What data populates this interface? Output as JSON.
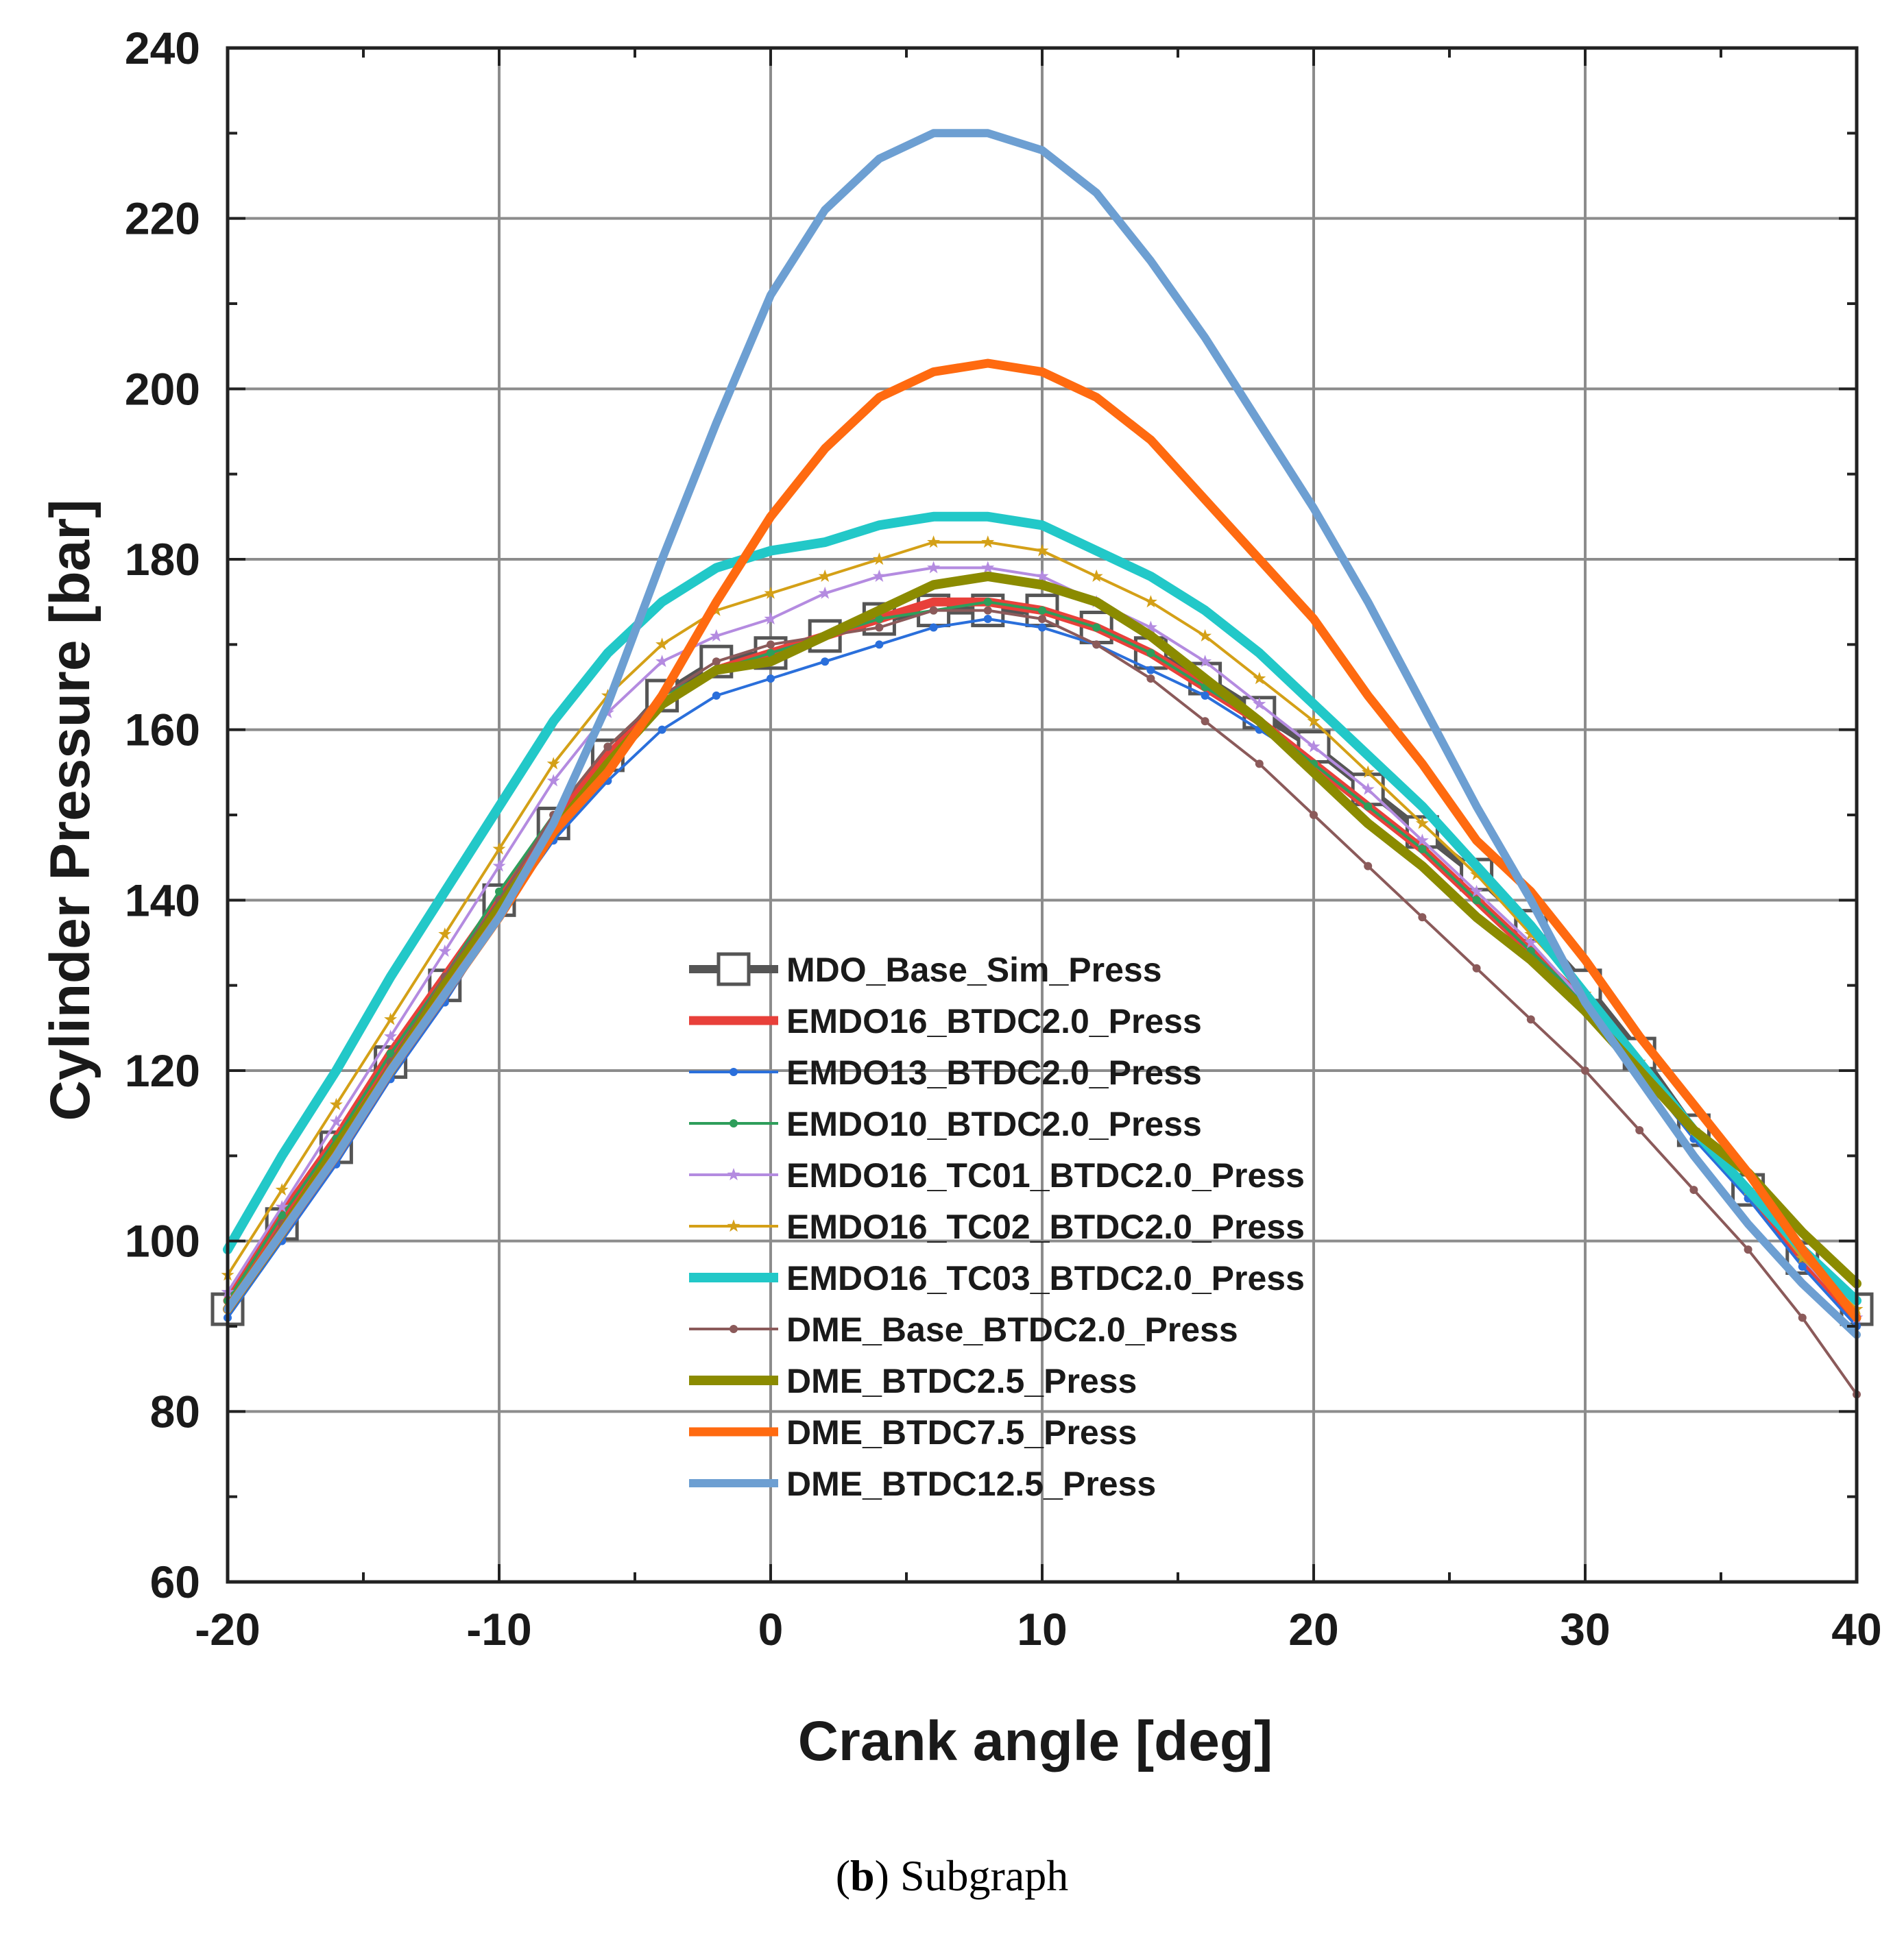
{
  "caption": {
    "letter": "b",
    "text": " Subgraph"
  },
  "chart_data": {
    "type": "line",
    "xlabel": "Crank angle [deg]",
    "ylabel": "Cylinder Pressure [bar]",
    "xlim": [
      -20,
      40
    ],
    "ylim": [
      60,
      240
    ],
    "xticks": [
      -20,
      -10,
      0,
      10,
      20,
      30,
      40
    ],
    "yticks": [
      60,
      80,
      100,
      120,
      140,
      160,
      180,
      200,
      220,
      240
    ],
    "grid": true,
    "legend_position": "center-bottom",
    "series": [
      {
        "name": "MDO_Base_Sim_Press",
        "color": "#555555",
        "marker": "square-open",
        "x": [
          -20,
          -18,
          -16,
          -14,
          -12,
          -10,
          -8,
          -6,
          -4,
          -2,
          0,
          2,
          4,
          6,
          8,
          10,
          12,
          14,
          16,
          18,
          20,
          22,
          24,
          26,
          28,
          30,
          32,
          34,
          36,
          38,
          40
        ],
        "y": [
          92,
          102,
          111,
          121,
          130,
          140,
          149,
          157,
          164,
          168,
          169,
          171,
          173,
          174,
          174,
          174,
          172,
          169,
          166,
          162,
          158,
          153,
          148,
          143,
          137,
          130,
          122,
          113,
          106,
          98,
          92
        ]
      },
      {
        "name": "EMDO16_BTDC2.0_Press",
        "color": "#e8403a",
        "marker": "none",
        "x": [
          -20,
          -18,
          -16,
          -14,
          -12,
          -10,
          -8,
          -6,
          -4,
          -2,
          0,
          2,
          4,
          6,
          8,
          10,
          12,
          14,
          16,
          18,
          20,
          22,
          24,
          26,
          28,
          30,
          32,
          34,
          36,
          38,
          40
        ],
        "y": [
          93,
          103,
          112,
          122,
          131,
          140,
          149,
          157,
          163,
          167,
          169,
          171,
          173,
          175,
          175,
          174,
          172,
          169,
          165,
          161,
          156,
          151,
          146,
          140,
          134,
          128,
          121,
          113,
          106,
          98,
          91
        ]
      },
      {
        "name": "EMDO13_BTDC2.0_Press",
        "color": "#2a6fdb",
        "marker": "dot",
        "x": [
          -20,
          -18,
          -16,
          -14,
          -12,
          -10,
          -8,
          -6,
          -4,
          -2,
          0,
          2,
          4,
          6,
          8,
          10,
          12,
          14,
          16,
          18,
          20,
          22,
          24,
          26,
          28,
          30,
          32,
          34,
          36,
          38,
          40
        ],
        "y": [
          91,
          100,
          109,
          119,
          128,
          138,
          147,
          154,
          160,
          164,
          166,
          168,
          170,
          172,
          173,
          172,
          170,
          167,
          164,
          160,
          156,
          151,
          146,
          140,
          134,
          127,
          120,
          112,
          105,
          97,
          90
        ]
      },
      {
        "name": "EMDO10_BTDC2.0_Press",
        "color": "#2e9e5b",
        "marker": "dot",
        "x": [
          -20,
          -18,
          -16,
          -14,
          -12,
          -10,
          -8,
          -6,
          -4,
          -2,
          0,
          2,
          4,
          6,
          8,
          10,
          12,
          14,
          16,
          18,
          20,
          22,
          24,
          26,
          28,
          30,
          32,
          34,
          36,
          38,
          40
        ],
        "y": [
          93,
          103,
          112,
          122,
          131,
          141,
          150,
          158,
          164,
          167,
          169,
          171,
          173,
          174,
          175,
          174,
          172,
          169,
          165,
          161,
          156,
          151,
          146,
          140,
          134,
          128,
          121,
          113,
          106,
          98,
          91
        ]
      },
      {
        "name": "EMDO16_TC01_BTDC2.0_Press",
        "color": "#b48be0",
        "marker": "star",
        "x": [
          -20,
          -18,
          -16,
          -14,
          -12,
          -10,
          -8,
          -6,
          -4,
          -2,
          0,
          2,
          4,
          6,
          8,
          10,
          12,
          14,
          16,
          18,
          20,
          22,
          24,
          26,
          28,
          30,
          32,
          34,
          36,
          38,
          40
        ],
        "y": [
          94,
          104,
          114,
          124,
          134,
          144,
          154,
          162,
          168,
          171,
          173,
          176,
          178,
          179,
          179,
          178,
          175,
          172,
          168,
          163,
          158,
          153,
          147,
          141,
          135,
          128,
          121,
          113,
          106,
          98,
          91
        ]
      },
      {
        "name": "EMDO16_TC02_BTDC2.0_Press",
        "color": "#d4a017",
        "marker": "star",
        "x": [
          -20,
          -18,
          -16,
          -14,
          -12,
          -10,
          -8,
          -6,
          -4,
          -2,
          0,
          2,
          4,
          6,
          8,
          10,
          12,
          14,
          16,
          18,
          20,
          22,
          24,
          26,
          28,
          30,
          32,
          34,
          36,
          38,
          40
        ],
        "y": [
          96,
          106,
          116,
          126,
          136,
          146,
          156,
          164,
          170,
          174,
          176,
          178,
          180,
          182,
          182,
          181,
          178,
          175,
          171,
          166,
          161,
          155,
          149,
          143,
          136,
          129,
          121,
          113,
          106,
          98,
          92
        ]
      },
      {
        "name": "EMDO16_TC03_BTDC2.0_Press",
        "color": "#22c8c8",
        "marker": "none",
        "x": [
          -20,
          -18,
          -16,
          -14,
          -12,
          -10,
          -8,
          -6,
          -4,
          -2,
          0,
          2,
          4,
          6,
          8,
          10,
          12,
          14,
          16,
          18,
          20,
          22,
          24,
          26,
          28,
          30,
          32,
          34,
          36,
          38,
          40
        ],
        "y": [
          99,
          110,
          120,
          131,
          141,
          151,
          161,
          169,
          175,
          179,
          181,
          182,
          184,
          185,
          185,
          184,
          181,
          178,
          174,
          169,
          163,
          157,
          151,
          144,
          137,
          129,
          121,
          113,
          106,
          99,
          93
        ]
      },
      {
        "name": "DME_Base_BTDC2.0_Press",
        "color": "#8b5a5a",
        "marker": "dot",
        "x": [
          -20,
          -18,
          -16,
          -14,
          -12,
          -10,
          -8,
          -6,
          -4,
          -2,
          0,
          2,
          4,
          6,
          8,
          10,
          12,
          14,
          16,
          18,
          20,
          22,
          24,
          26,
          28,
          30,
          32,
          34,
          36,
          38,
          40
        ],
        "y": [
          92,
          102,
          111,
          121,
          131,
          140,
          150,
          158,
          164,
          168,
          170,
          171,
          172,
          174,
          174,
          173,
          170,
          166,
          161,
          156,
          150,
          144,
          138,
          132,
          126,
          120,
          113,
          106,
          99,
          91,
          82
        ]
      },
      {
        "name": "DME_BTDC2.5_Press",
        "color": "#8b8b00",
        "marker": "none",
        "x": [
          -20,
          -18,
          -16,
          -14,
          -12,
          -10,
          -8,
          -6,
          -4,
          -2,
          0,
          2,
          4,
          6,
          8,
          10,
          12,
          14,
          16,
          18,
          20,
          22,
          24,
          26,
          28,
          30,
          32,
          34,
          36,
          38,
          40
        ],
        "y": [
          92,
          101,
          111,
          120,
          130,
          139,
          148,
          156,
          163,
          167,
          168,
          171,
          174,
          177,
          178,
          177,
          175,
          171,
          166,
          161,
          155,
          149,
          144,
          138,
          133,
          127,
          120,
          113,
          108,
          101,
          95
        ]
      },
      {
        "name": "DME_BTDC7.5_Press",
        "color": "#ff6a10",
        "marker": "none",
        "x": [
          -20,
          -18,
          -16,
          -14,
          -12,
          -10,
          -8,
          -6,
          -4,
          -2,
          0,
          2,
          4,
          6,
          8,
          10,
          12,
          14,
          16,
          18,
          20,
          22,
          24,
          26,
          28,
          30,
          32,
          34,
          36,
          38,
          40
        ],
        "y": [
          92,
          101,
          110,
          120,
          129,
          138,
          148,
          155,
          164,
          175,
          185,
          193,
          199,
          202,
          203,
          202,
          199,
          194,
          187,
          180,
          173,
          164,
          156,
          147,
          141,
          133,
          124,
          116,
          108,
          99,
          91
        ]
      },
      {
        "name": "DME_BTDC12.5_Press",
        "color": "#6d9fd2",
        "marker": "none",
        "x": [
          -20,
          -18,
          -16,
          -14,
          -12,
          -10,
          -8,
          -6,
          -4,
          -2,
          0,
          2,
          4,
          6,
          8,
          10,
          12,
          14,
          16,
          18,
          20,
          22,
          24,
          26,
          28,
          30,
          32,
          34,
          36,
          38,
          40
        ],
        "y": [
          92,
          101,
          110,
          120,
          129,
          138,
          149,
          163,
          180,
          196,
          211,
          221,
          227,
          230,
          230,
          228,
          223,
          215,
          206,
          196,
          186,
          175,
          163,
          151,
          140,
          128,
          119,
          110,
          102,
          95,
          89
        ]
      }
    ]
  }
}
